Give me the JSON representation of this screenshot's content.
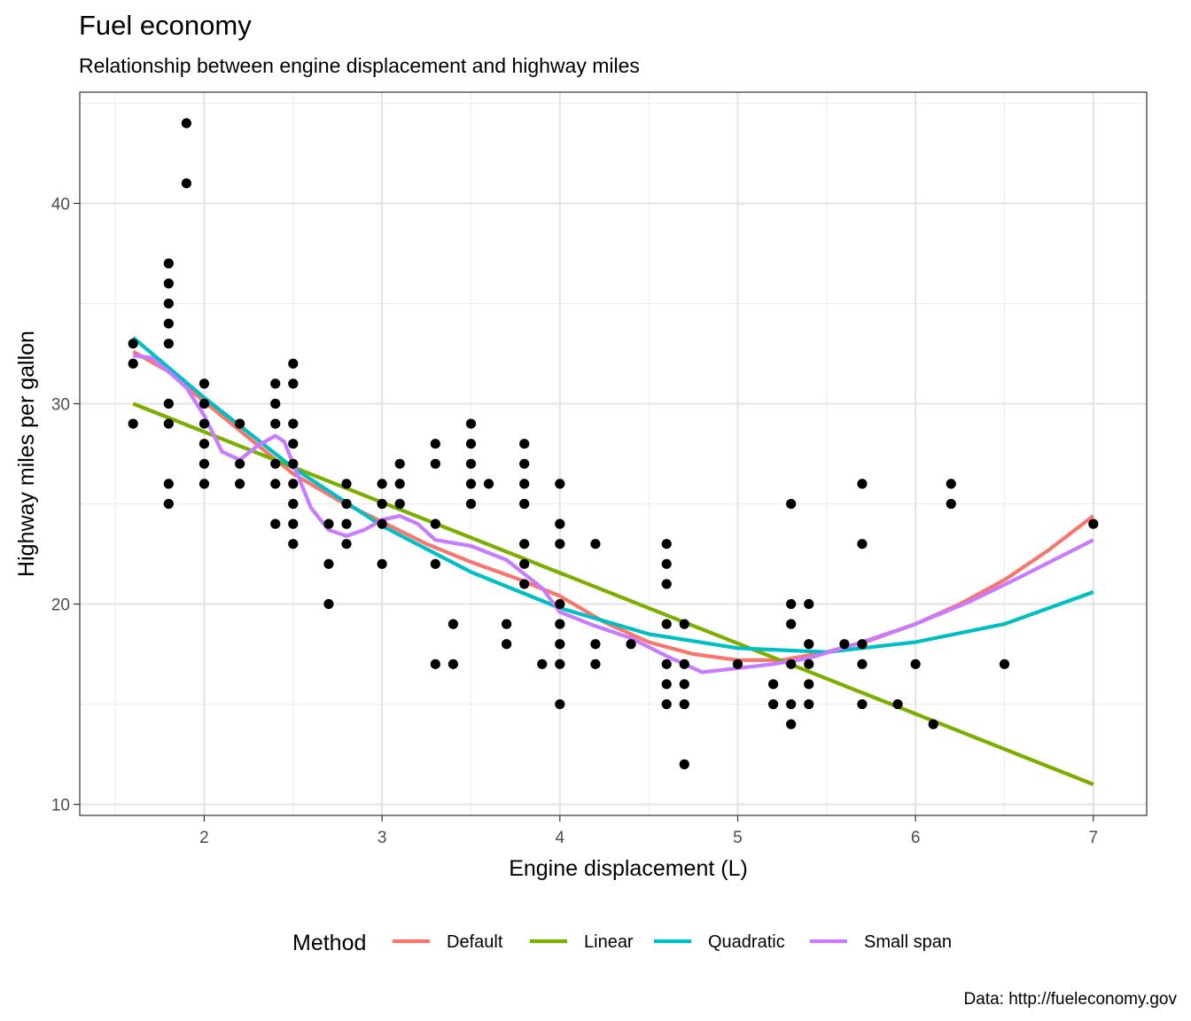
{
  "chart_data": {
    "type": "scatter",
    "title": "Fuel economy",
    "subtitle": "Relationship between engine displacement and highway miles",
    "xlabel": "Engine displacement (L)",
    "ylabel": "Highway miles per gallon",
    "caption": "Data: http://fueleconomy.gov",
    "xlim": [
      1.3,
      7.3
    ],
    "ylim": [
      9.45,
      45.55
    ],
    "x_ticks": [
      2,
      3,
      4,
      5,
      6,
      7
    ],
    "y_ticks": [
      10,
      20,
      30,
      40
    ],
    "x_tick_labels": [
      "2",
      "3",
      "4",
      "5",
      "6",
      "7"
    ],
    "y_tick_labels": [
      "10",
      "20",
      "30",
      "40"
    ],
    "grid": true,
    "legend": {
      "title": "Method",
      "position": "bottom"
    },
    "points": [
      [
        1.6,
        33
      ],
      [
        1.6,
        32
      ],
      [
        1.6,
        29
      ],
      [
        1.8,
        37
      ],
      [
        1.8,
        36
      ],
      [
        1.8,
        35
      ],
      [
        1.8,
        34
      ],
      [
        1.8,
        33
      ],
      [
        1.8,
        30
      ],
      [
        1.8,
        29
      ],
      [
        1.8,
        26
      ],
      [
        1.8,
        25
      ],
      [
        1.9,
        44
      ],
      [
        1.9,
        41
      ],
      [
        2.0,
        31
      ],
      [
        2.0,
        30
      ],
      [
        2.0,
        29
      ],
      [
        2.0,
        28
      ],
      [
        2.0,
        27
      ],
      [
        2.0,
        26
      ],
      [
        2.2,
        29
      ],
      [
        2.2,
        27
      ],
      [
        2.2,
        26
      ],
      [
        2.4,
        31
      ],
      [
        2.4,
        30
      ],
      [
        2.4,
        29
      ],
      [
        2.4,
        27
      ],
      [
        2.4,
        26
      ],
      [
        2.4,
        24
      ],
      [
        2.5,
        32
      ],
      [
        2.5,
        31
      ],
      [
        2.5,
        29
      ],
      [
        2.5,
        28
      ],
      [
        2.5,
        27
      ],
      [
        2.5,
        26
      ],
      [
        2.5,
        25
      ],
      [
        2.5,
        24
      ],
      [
        2.5,
        23
      ],
      [
        2.7,
        24
      ],
      [
        2.7,
        22
      ],
      [
        2.7,
        20
      ],
      [
        2.8,
        26
      ],
      [
        2.8,
        25
      ],
      [
        2.8,
        24
      ],
      [
        2.8,
        23
      ],
      [
        3.0,
        26
      ],
      [
        3.0,
        25
      ],
      [
        3.0,
        24
      ],
      [
        3.0,
        22
      ],
      [
        3.1,
        27
      ],
      [
        3.1,
        26
      ],
      [
        3.1,
        25
      ],
      [
        3.3,
        28
      ],
      [
        3.3,
        27
      ],
      [
        3.3,
        24
      ],
      [
        3.3,
        22
      ],
      [
        3.3,
        17
      ],
      [
        3.4,
        19
      ],
      [
        3.4,
        17
      ],
      [
        3.5,
        29
      ],
      [
        3.5,
        28
      ],
      [
        3.5,
        27
      ],
      [
        3.5,
        26
      ],
      [
        3.5,
        25
      ],
      [
        3.6,
        26
      ],
      [
        3.7,
        19
      ],
      [
        3.7,
        18
      ],
      [
        3.8,
        28
      ],
      [
        3.8,
        27
      ],
      [
        3.8,
        26
      ],
      [
        3.8,
        25
      ],
      [
        3.8,
        23
      ],
      [
        3.8,
        22
      ],
      [
        3.8,
        21
      ],
      [
        3.9,
        17
      ],
      [
        4.0,
        26
      ],
      [
        4.0,
        24
      ],
      [
        4.0,
        23
      ],
      [
        4.0,
        20
      ],
      [
        4.0,
        19
      ],
      [
        4.0,
        18
      ],
      [
        4.0,
        17
      ],
      [
        4.0,
        15
      ],
      [
        4.2,
        23
      ],
      [
        4.2,
        18
      ],
      [
        4.2,
        17
      ],
      [
        4.4,
        18
      ],
      [
        4.6,
        23
      ],
      [
        4.6,
        22
      ],
      [
        4.6,
        21
      ],
      [
        4.6,
        19
      ],
      [
        4.6,
        17
      ],
      [
        4.6,
        16
      ],
      [
        4.6,
        15
      ],
      [
        4.7,
        19
      ],
      [
        4.7,
        17
      ],
      [
        4.7,
        16
      ],
      [
        4.7,
        15
      ],
      [
        4.7,
        12
      ],
      [
        5.0,
        17
      ],
      [
        5.2,
        16
      ],
      [
        5.2,
        15
      ],
      [
        5.3,
        25
      ],
      [
        5.3,
        20
      ],
      [
        5.3,
        19
      ],
      [
        5.3,
        17
      ],
      [
        5.3,
        15
      ],
      [
        5.3,
        14
      ],
      [
        5.4,
        20
      ],
      [
        5.4,
        18
      ],
      [
        5.4,
        17
      ],
      [
        5.4,
        16
      ],
      [
        5.4,
        15
      ],
      [
        5.6,
        18
      ],
      [
        5.7,
        26
      ],
      [
        5.7,
        23
      ],
      [
        5.7,
        18
      ],
      [
        5.7,
        17
      ],
      [
        5.7,
        15
      ],
      [
        5.9,
        15
      ],
      [
        6.0,
        17
      ],
      [
        6.1,
        14
      ],
      [
        6.2,
        26
      ],
      [
        6.2,
        25
      ],
      [
        6.5,
        17
      ],
      [
        7.0,
        24
      ]
    ],
    "series": [
      {
        "name": "Default",
        "color": "#F8766D",
        "x": [
          1.6,
          1.8,
          2.0,
          2.25,
          2.5,
          2.75,
          3.0,
          3.25,
          3.5,
          3.75,
          4.0,
          4.25,
          4.5,
          4.75,
          5.0,
          5.25,
          5.5,
          5.75,
          6.0,
          6.25,
          6.5,
          6.75,
          7.0
        ],
        "y": [
          32.6,
          31.6,
          30.1,
          28.3,
          26.5,
          25.2,
          24.1,
          23.0,
          22.1,
          21.3,
          20.4,
          19.1,
          18.1,
          17.5,
          17.2,
          17.2,
          17.6,
          18.2,
          19.0,
          20.0,
          21.2,
          22.7,
          24.4
        ]
      },
      {
        "name": "Linear",
        "color": "#7CAE00",
        "x": [
          1.6,
          7.0
        ],
        "y": [
          30.0,
          11.0
        ]
      },
      {
        "name": "Quadratic",
        "color": "#00BFC4",
        "x": [
          1.6,
          2.0,
          2.5,
          3.0,
          3.5,
          4.0,
          4.5,
          5.0,
          5.5,
          6.0,
          6.5,
          7.0
        ],
        "y": [
          33.3,
          30.3,
          26.8,
          23.9,
          21.6,
          19.8,
          18.5,
          17.8,
          17.6,
          18.1,
          19.0,
          20.6
        ]
      },
      {
        "name": "Small span",
        "color": "#C77CFF",
        "x": [
          1.6,
          1.7,
          1.8,
          1.9,
          2.0,
          2.1,
          2.2,
          2.3,
          2.4,
          2.45,
          2.5,
          2.6,
          2.7,
          2.8,
          2.9,
          3.0,
          3.1,
          3.2,
          3.3,
          3.5,
          3.7,
          3.8,
          3.9,
          4.0,
          4.2,
          4.4,
          4.6,
          4.8,
          5.0,
          5.2,
          5.4,
          5.7,
          6.0,
          6.3,
          6.6,
          7.0
        ],
        "y": [
          32.4,
          32.3,
          31.6,
          30.8,
          29.4,
          27.6,
          27.2,
          27.9,
          28.4,
          28.1,
          27.0,
          24.8,
          23.7,
          23.4,
          23.7,
          24.2,
          24.4,
          24.0,
          23.2,
          22.9,
          22.2,
          21.5,
          20.8,
          19.6,
          18.9,
          18.3,
          17.4,
          16.6,
          16.8,
          17.0,
          17.3,
          18.1,
          19.0,
          20.1,
          21.4,
          23.2
        ]
      }
    ]
  }
}
